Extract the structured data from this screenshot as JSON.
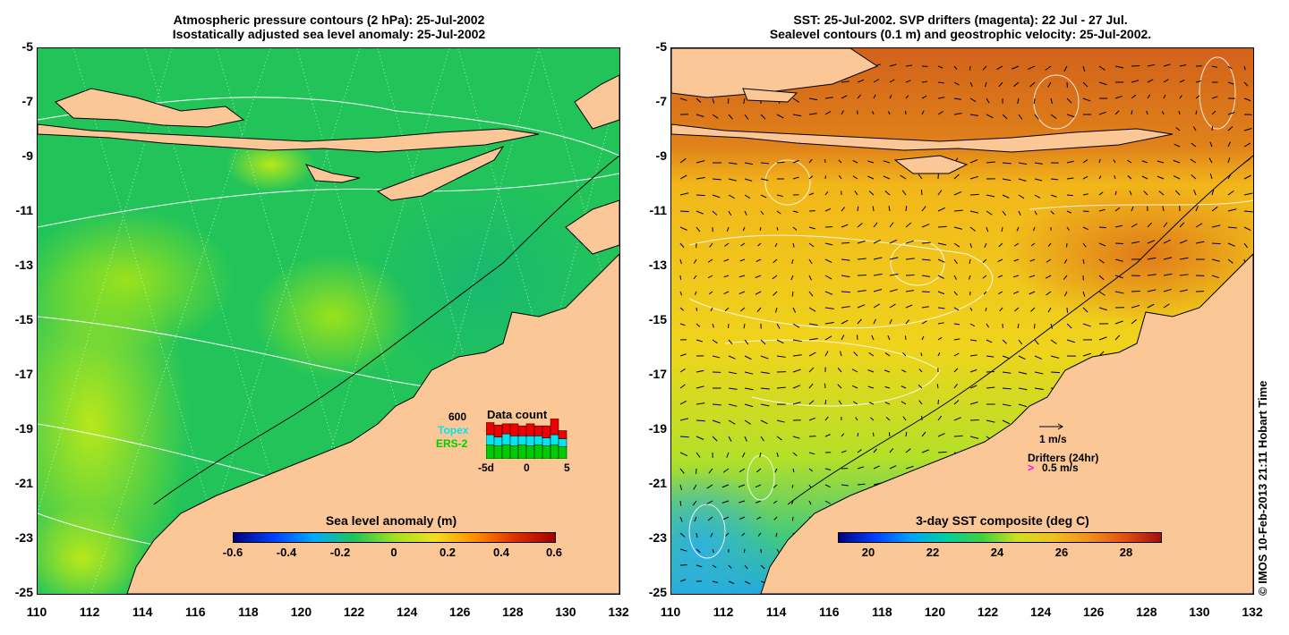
{
  "left_panel": {
    "title_line1": "Atmospheric pressure contours (2 hPa): 25-Jul-2002",
    "title_line2": "Isostatically adjusted sea level anomaly: 25-Jul-2002",
    "colorbar_title": "Sea level anomaly (m)",
    "colorbar_ticks": [
      "-0.6",
      "-0.4",
      "-0.2",
      "0",
      "0.2",
      "0.4",
      "0.6"
    ],
    "colorbar_range": [
      -0.6,
      0.6
    ],
    "data_count": {
      "title": "Data count",
      "count_label": "600",
      "series": [
        {
          "name": "Topex",
          "color": "#00e5ee"
        },
        {
          "name": "ERS-2",
          "color": "#00cc00"
        }
      ],
      "top_color": "#ee0000",
      "x_ticks": [
        "-5d",
        "0",
        "5"
      ],
      "bars": [
        {
          "ers": 0.35,
          "topex": 0.25,
          "red": 0.3
        },
        {
          "ers": 0.32,
          "topex": 0.22,
          "red": 0.3
        },
        {
          "ers": 0.35,
          "topex": 0.27,
          "red": 0.25
        },
        {
          "ers": 0.32,
          "topex": 0.25,
          "red": 0.3
        },
        {
          "ers": 0.35,
          "topex": 0.22,
          "red": 0.25
        },
        {
          "ers": 0.32,
          "topex": 0.25,
          "red": 0.3
        },
        {
          "ers": 0.35,
          "topex": 0.22,
          "red": 0.25
        },
        {
          "ers": 0.32,
          "topex": 0.2,
          "red": 0.3
        },
        {
          "ers": 0.35,
          "topex": 0.25,
          "red": 0.4
        },
        {
          "ers": 0.3,
          "topex": 0.2,
          "red": 0.2
        }
      ]
    }
  },
  "right_panel": {
    "title_line1": "SST: 25-Jul-2002. SVP drifters (magenta): 22 Jul - 27 Jul.",
    "title_line2": "Sealevel contours (0.1 m) and geostrophic velocity: 25-Jul-2002.",
    "colorbar_title": "3-day SST composite (deg C)",
    "colorbar_ticks": [
      "20",
      "22",
      "24",
      "26",
      "28"
    ],
    "colorbar_range": [
      19,
      29
    ],
    "velocity_scale_label": "1 m/s",
    "drifters_label": "Drifters (24hr)",
    "drifter_scale_label": "0.5 m/s"
  },
  "axes": {
    "lon_ticks": [
      "110",
      "112",
      "114",
      "116",
      "118",
      "120",
      "122",
      "124",
      "126",
      "128",
      "130",
      "132"
    ],
    "lat_ticks": [
      "-5",
      "-7",
      "-9",
      "-11",
      "-13",
      "-15",
      "-17",
      "-19",
      "-21",
      "-23",
      "-25"
    ],
    "lon_range": [
      110,
      132
    ],
    "lat_range": [
      -25,
      -5
    ]
  },
  "colors": {
    "land": "#fbc796",
    "slaBackground": "#22c45a",
    "sstBackground": "#f2b61a"
  },
  "credit": "© IMOS 10-Feb-2013 21:11 Hobart Time"
}
